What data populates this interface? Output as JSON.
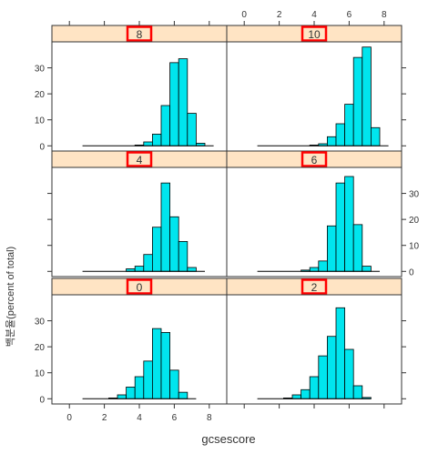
{
  "chart_data": {
    "type": "bar",
    "xlabel": "gcsescore",
    "ylabel": "백분율(percent of total)",
    "xlim": [
      -1,
      9
    ],
    "ylim": [
      -2,
      40
    ],
    "x_ticks": [
      "0",
      "2",
      "4",
      "6",
      "8"
    ],
    "y_ticks": [
      "0",
      "10",
      "20",
      "30"
    ],
    "bin_width": 0.5,
    "colors": {
      "bar_fill": "#00e5ee",
      "strip": "#ffe4c4",
      "highlight": "#ff0000"
    },
    "panels": [
      {
        "label": "8",
        "bins": [
          {
            "x": 1.0,
            "v": 0
          },
          {
            "x": 3.5,
            "v": 0
          },
          {
            "x": 4.0,
            "v": 0.3
          },
          {
            "x": 4.5,
            "v": 1.5
          },
          {
            "x": 5.0,
            "v": 4.5
          },
          {
            "x": 5.5,
            "v": 15.5
          },
          {
            "x": 6.0,
            "v": 32
          },
          {
            "x": 6.5,
            "v": 33.5
          },
          {
            "x": 7.0,
            "v": 12.5
          },
          {
            "x": 7.5,
            "v": 1
          },
          {
            "x": 8.0,
            "v": 0
          }
        ]
      },
      {
        "label": "10",
        "bins": [
          {
            "x": 1.0,
            "v": 0
          },
          {
            "x": 3.5,
            "v": 0
          },
          {
            "x": 4.0,
            "v": 0.3
          },
          {
            "x": 4.5,
            "v": 0.8
          },
          {
            "x": 5.0,
            "v": 3.5
          },
          {
            "x": 5.5,
            "v": 8.5
          },
          {
            "x": 6.0,
            "v": 16
          },
          {
            "x": 6.5,
            "v": 34
          },
          {
            "x": 7.0,
            "v": 38
          },
          {
            "x": 7.5,
            "v": 7
          },
          {
            "x": 8.0,
            "v": 0
          }
        ]
      },
      {
        "label": "4",
        "bins": [
          {
            "x": 1.0,
            "v": 0
          },
          {
            "x": 3.5,
            "v": 1
          },
          {
            "x": 4.0,
            "v": 2
          },
          {
            "x": 4.5,
            "v": 6.5
          },
          {
            "x": 5.0,
            "v": 17
          },
          {
            "x": 5.5,
            "v": 34
          },
          {
            "x": 6.0,
            "v": 21
          },
          {
            "x": 6.5,
            "v": 11.5
          },
          {
            "x": 7.0,
            "v": 1.5
          },
          {
            "x": 7.5,
            "v": 0
          }
        ]
      },
      {
        "label": "6",
        "bins": [
          {
            "x": 1.0,
            "v": 0
          },
          {
            "x": 3.5,
            "v": 0.5
          },
          {
            "x": 4.0,
            "v": 1.5
          },
          {
            "x": 4.5,
            "v": 4
          },
          {
            "x": 5.0,
            "v": 17.5
          },
          {
            "x": 5.5,
            "v": 34
          },
          {
            "x": 6.0,
            "v": 36.5
          },
          {
            "x": 6.5,
            "v": 18
          },
          {
            "x": 7.0,
            "v": 2
          },
          {
            "x": 7.5,
            "v": 0
          }
        ]
      },
      {
        "label": "0",
        "bins": [
          {
            "x": 1.0,
            "v": 0
          },
          {
            "x": 2.5,
            "v": 0.3
          },
          {
            "x": 3.0,
            "v": 1.5
          },
          {
            "x": 3.5,
            "v": 4.5
          },
          {
            "x": 4.0,
            "v": 8.5
          },
          {
            "x": 4.5,
            "v": 14.5
          },
          {
            "x": 5.0,
            "v": 27
          },
          {
            "x": 5.5,
            "v": 25.5
          },
          {
            "x": 6.0,
            "v": 11
          },
          {
            "x": 6.5,
            "v": 2.5
          },
          {
            "x": 7.0,
            "v": 0
          }
        ]
      },
      {
        "label": "2",
        "bins": [
          {
            "x": 1.0,
            "v": 0
          },
          {
            "x": 2.5,
            "v": 0.3
          },
          {
            "x": 3.0,
            "v": 1.5
          },
          {
            "x": 3.5,
            "v": 3.5
          },
          {
            "x": 4.0,
            "v": 8.5
          },
          {
            "x": 4.5,
            "v": 16.5
          },
          {
            "x": 5.0,
            "v": 24
          },
          {
            "x": 5.5,
            "v": 35
          },
          {
            "x": 6.0,
            "v": 19
          },
          {
            "x": 6.5,
            "v": 5
          },
          {
            "x": 7.0,
            "v": 0.5
          }
        ]
      }
    ]
  }
}
